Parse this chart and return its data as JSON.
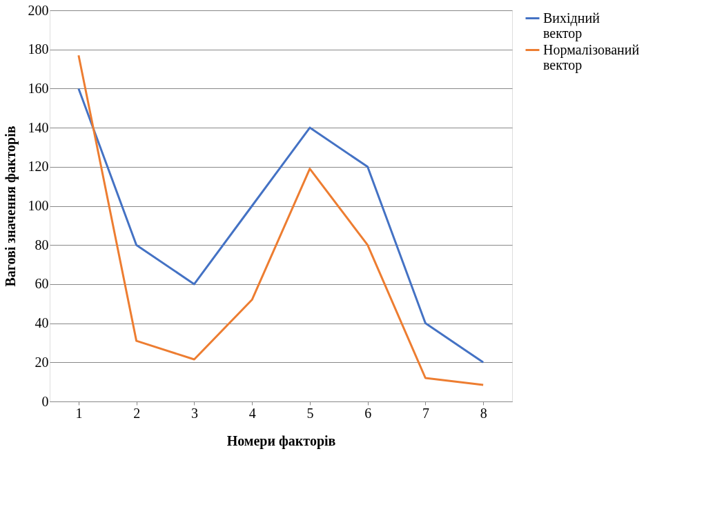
{
  "chart_data": {
    "type": "line",
    "xlabel": "Номери факторів",
    "ylabel": "Вагові значення факторів",
    "categories": [
      "1",
      "2",
      "3",
      "4",
      "5",
      "6",
      "7",
      "8"
    ],
    "series": [
      {
        "name": "Вихідний вектор",
        "color": "#4472c4",
        "values": [
          160,
          80,
          60,
          100,
          140,
          120,
          40,
          20
        ]
      },
      {
        "name": "Нормалізований вектор",
        "color": "#ed7d31",
        "values": [
          177,
          31,
          21.5,
          52,
          119,
          80,
          12,
          8.5
        ]
      }
    ],
    "ylim": [
      0,
      200
    ],
    "yticks": [
      0,
      20,
      40,
      60,
      80,
      100,
      120,
      140,
      160,
      180,
      200
    ],
    "grid": "y",
    "legend": "right",
    "marker": "none",
    "line_style": "solid"
  }
}
